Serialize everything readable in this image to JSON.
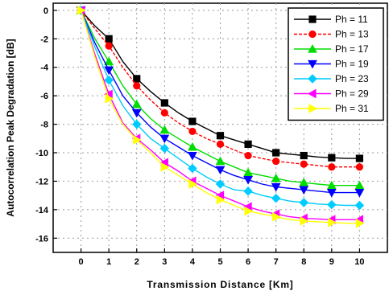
{
  "chart_data": {
    "type": "line",
    "xlabel": "Transmission Distance [Km]",
    "ylabel": "Autocorrelation Peak Degradation [dB]",
    "xlim": [
      -1,
      11
    ],
    "ylim": [
      -17,
      0.5
    ],
    "x_ticks": [
      0,
      1,
      2,
      3,
      4,
      5,
      6,
      7,
      8,
      9,
      10
    ],
    "y_ticks": [
      0,
      -2,
      -4,
      -6,
      -8,
      -10,
      -12,
      -14,
      -16
    ],
    "grid": true,
    "legend_position": "top-right",
    "series": [
      {
        "name": "Ph = 11",
        "color": "#000000",
        "marker": "square",
        "dash": "solid",
        "x": [
          0,
          0.5,
          1,
          1.5,
          2,
          2.5,
          3,
          3.5,
          4,
          4.5,
          5,
          5.5,
          6,
          6.5,
          7,
          7.5,
          8,
          8.5,
          9,
          9.5,
          10
        ],
        "y": [
          0,
          -1.1,
          -2.0,
          -3.6,
          -4.8,
          -5.7,
          -6.5,
          -7.2,
          -7.8,
          -8.3,
          -8.8,
          -9.1,
          -9.4,
          -9.7,
          -10.0,
          -10.1,
          -10.2,
          -10.3,
          -10.35,
          -10.4,
          -10.4
        ]
      },
      {
        "name": "Ph = 13",
        "color": "#ff0000",
        "marker": "circle",
        "dash": "dashed",
        "x": [
          0,
          0.5,
          1,
          1.5,
          2,
          2.5,
          3,
          3.5,
          4,
          4.5,
          5,
          5.5,
          6,
          6.5,
          7,
          7.5,
          8,
          8.5,
          9,
          9.5,
          10
        ],
        "y": [
          0,
          -1.3,
          -2.5,
          -4.0,
          -5.3,
          -6.3,
          -7.2,
          -7.9,
          -8.5,
          -9.0,
          -9.4,
          -9.8,
          -10.2,
          -10.4,
          -10.6,
          -10.7,
          -10.8,
          -10.9,
          -11.0,
          -11.0,
          -11.0
        ]
      },
      {
        "name": "Ph = 17",
        "color": "#00dd00",
        "marker": "triangle-up",
        "dash": "solid",
        "x": [
          0,
          0.5,
          1,
          1.5,
          2,
          2.5,
          3,
          3.5,
          4,
          4.5,
          5,
          5.5,
          6,
          6.5,
          7,
          7.5,
          8,
          8.5,
          9,
          9.5,
          10
        ],
        "y": [
          0,
          -2.0,
          -3.6,
          -5.3,
          -6.6,
          -7.6,
          -8.4,
          -9.0,
          -9.6,
          -10.1,
          -10.6,
          -11.0,
          -11.4,
          -11.6,
          -11.8,
          -12.0,
          -12.1,
          -12.2,
          -12.3,
          -12.3,
          -12.3
        ]
      },
      {
        "name": "Ph = 19",
        "color": "#0000ff",
        "marker": "triangle-down",
        "dash": "solid",
        "x": [
          0,
          0.5,
          1,
          1.5,
          2,
          2.5,
          3,
          3.5,
          4,
          4.5,
          5,
          5.5,
          6,
          6.5,
          7,
          7.5,
          8,
          8.5,
          9,
          9.5,
          10
        ],
        "y": [
          0,
          -2.3,
          -4.2,
          -6.0,
          -7.2,
          -8.2,
          -9.0,
          -9.6,
          -10.2,
          -10.7,
          -11.2,
          -11.6,
          -11.9,
          -12.2,
          -12.4,
          -12.5,
          -12.6,
          -12.7,
          -12.8,
          -12.8,
          -12.8
        ]
      },
      {
        "name": "Ph = 23",
        "color": "#00ccff",
        "marker": "diamond",
        "dash": "solid",
        "x": [
          0,
          0.5,
          1,
          1.5,
          2,
          2.5,
          3,
          3.5,
          4,
          4.5,
          5,
          5.5,
          6,
          6.5,
          7,
          7.5,
          8,
          8.5,
          9,
          9.5,
          10
        ],
        "y": [
          0,
          -2.6,
          -4.9,
          -6.7,
          -8.0,
          -9.0,
          -9.7,
          -10.4,
          -11.1,
          -11.7,
          -12.2,
          -12.6,
          -12.7,
          -13.0,
          -13.2,
          -13.4,
          -13.5,
          -13.6,
          -13.65,
          -13.7,
          -13.7
        ]
      },
      {
        "name": "Ph = 29",
        "color": "#ff00ff",
        "marker": "triangle-left",
        "dash": "solid",
        "x": [
          0,
          0.5,
          1,
          1.5,
          2,
          2.5,
          3,
          3.5,
          4,
          4.5,
          5,
          5.5,
          6,
          6.5,
          7,
          7.5,
          8,
          8.5,
          9,
          9.5,
          10
        ],
        "y": [
          0,
          -3.1,
          -5.9,
          -7.9,
          -9.0,
          -9.8,
          -10.7,
          -11.3,
          -12.0,
          -12.5,
          -13.0,
          -13.4,
          -13.8,
          -14.1,
          -14.3,
          -14.5,
          -14.6,
          -14.65,
          -14.7,
          -14.7,
          -14.7
        ]
      },
      {
        "name": "Ph = 31",
        "color": "#ffff00",
        "marker": "triangle-right",
        "dash": "solid",
        "x": [
          0,
          0.5,
          1,
          1.5,
          2,
          2.5,
          3,
          3.5,
          4,
          4.5,
          5,
          5.5,
          6,
          6.5,
          7,
          7.5,
          8,
          8.5,
          9,
          9.5,
          10
        ],
        "y": [
          0,
          -3.3,
          -6.2,
          -8.0,
          -9.1,
          -10.0,
          -11.0,
          -11.6,
          -12.2,
          -12.8,
          -13.3,
          -13.7,
          -14.1,
          -14.3,
          -14.5,
          -14.7,
          -14.8,
          -14.85,
          -14.9,
          -14.95,
          -14.95
        ]
      }
    ]
  }
}
